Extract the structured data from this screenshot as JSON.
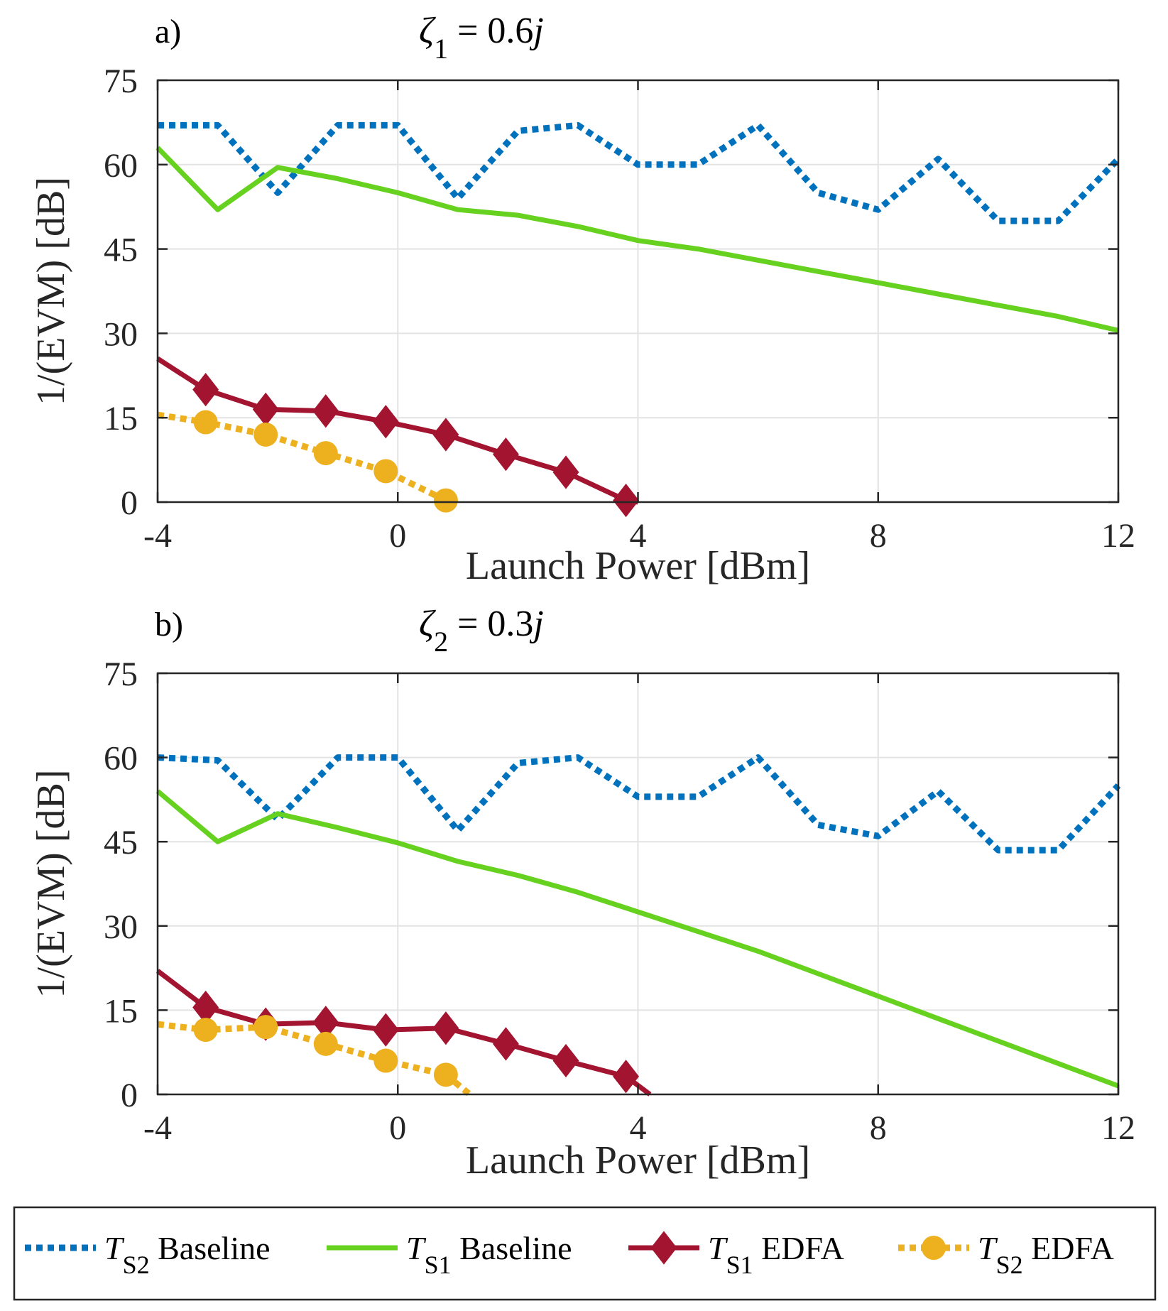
{
  "chart_data": [
    {
      "type": "line",
      "panel_label": "a)",
      "title": {
        "symbol": "ζ",
        "sub": "1",
        "eq": " = 0.6",
        "imag": "j"
      },
      "xlabel": "Launch Power [dBm]",
      "ylabel": "1/(EVM) [dB]",
      "xlim": [
        -4,
        12
      ],
      "ylim": [
        0,
        75
      ],
      "xticks": [
        "-4",
        "0",
        "4",
        "8",
        "12"
      ],
      "yticks": [
        "0",
        "15",
        "30",
        "45",
        "60",
        "75"
      ],
      "grid": true,
      "series": [
        {
          "key": "ts2_baseline",
          "name": "T_S2 Baseline",
          "x": [
            -4,
            -3,
            -2,
            -1,
            0,
            1,
            2,
            3,
            4,
            5,
            6,
            7,
            8,
            9,
            10,
            11,
            12
          ],
          "y": [
            67,
            67,
            55,
            67,
            67,
            54,
            66,
            67,
            60,
            60,
            67,
            55,
            52,
            61,
            50,
            50,
            61
          ]
        },
        {
          "key": "ts1_baseline",
          "name": "T_S1 Baseline",
          "x": [
            -4,
            -3,
            -2,
            -1,
            0,
            1,
            2,
            3,
            4,
            5,
            6,
            7,
            8,
            9,
            10,
            11,
            12
          ],
          "y": [
            63,
            52,
            59.5,
            57.5,
            55,
            52,
            51,
            49,
            46.5,
            45,
            43,
            41,
            39,
            37,
            35,
            33,
            30.5
          ]
        },
        {
          "key": "ts1_edfa",
          "name": "T_S1 EDFA",
          "x": [
            -4,
            -3.2,
            -2.2,
            -1.2,
            -0.2,
            0.8,
            1.8,
            2.8,
            3.8,
            4
          ],
          "y": [
            25.5,
            20,
            16.5,
            16.2,
            14.3,
            12,
            8.5,
            5.3,
            0.3,
            0
          ],
          "markers": [
            false,
            true,
            true,
            true,
            true,
            true,
            true,
            true,
            true,
            false
          ]
        },
        {
          "key": "ts2_edfa",
          "name": "T_S2 EDFA",
          "x": [
            -4,
            -3.2,
            -2.2,
            -1.2,
            -0.2,
            0.8
          ],
          "y": [
            15.5,
            14.2,
            12,
            8.7,
            5.5,
            0.3
          ],
          "markers": [
            false,
            true,
            true,
            true,
            true,
            true
          ]
        }
      ]
    },
    {
      "type": "line",
      "panel_label": "b)",
      "title": {
        "symbol": "ζ",
        "sub": "2",
        "eq": " = 0.3",
        "imag": "j"
      },
      "xlabel": "Launch Power [dBm]",
      "ylabel": "1/(EVM) [dB]",
      "xlim": [
        -4,
        12
      ],
      "ylim": [
        0,
        75
      ],
      "xticks": [
        "-4",
        "0",
        "4",
        "8",
        "12"
      ],
      "yticks": [
        "0",
        "15",
        "30",
        "45",
        "60",
        "75"
      ],
      "grid": true,
      "series": [
        {
          "key": "ts2_baseline",
          "name": "T_S2 Baseline",
          "x": [
            -4,
            -3,
            -2,
            -1,
            0,
            1,
            2,
            3,
            4,
            5,
            6,
            7,
            8,
            9,
            10,
            11,
            12
          ],
          "y": [
            60,
            59.5,
            49,
            60,
            60,
            47,
            59,
            60,
            53,
            53,
            60,
            48,
            46,
            54,
            43.5,
            43.5,
            55
          ]
        },
        {
          "key": "ts1_baseline",
          "name": "T_S1 Baseline",
          "x": [
            -4,
            -3,
            -2,
            -1,
            0,
            1,
            2,
            3,
            4,
            5,
            6,
            7,
            8,
            9,
            10,
            11,
            12
          ],
          "y": [
            54,
            45,
            50,
            47.5,
            44.8,
            41.5,
            39,
            36,
            32.5,
            29,
            25.5,
            21.5,
            17.5,
            13.5,
            9.5,
            5.5,
            1.5
          ]
        },
        {
          "key": "ts1_edfa",
          "name": "T_S1 EDFA",
          "x": [
            -4,
            -3.2,
            -2.2,
            -1.2,
            -0.2,
            0.8,
            1.8,
            2.8,
            3.8,
            4.2
          ],
          "y": [
            22,
            15.5,
            12.5,
            12.8,
            11.5,
            11.8,
            9,
            6,
            3.2,
            0
          ],
          "markers": [
            false,
            true,
            true,
            true,
            true,
            true,
            true,
            true,
            true,
            false
          ]
        },
        {
          "key": "ts2_edfa",
          "name": "T_S2 EDFA",
          "x": [
            -4,
            -3.2,
            -2.2,
            -1.2,
            -0.2,
            0.8,
            1.2
          ],
          "y": [
            12.5,
            11.5,
            12,
            9,
            6,
            3.5,
            0
          ],
          "markers": [
            false,
            true,
            true,
            true,
            true,
            true,
            false
          ]
        }
      ]
    }
  ],
  "legend": {
    "items": [
      {
        "key": "ts2_baseline",
        "symbol": "T",
        "sub": "S2",
        "label": "Baseline"
      },
      {
        "key": "ts1_baseline",
        "symbol": "T",
        "sub": "S1",
        "label": "Baseline"
      },
      {
        "key": "ts1_edfa",
        "symbol": "T",
        "sub": "S1",
        "label": "EDFA"
      },
      {
        "key": "ts2_edfa",
        "symbol": "T",
        "sub": "S2",
        "label": "EDFA"
      }
    ]
  },
  "colors": {
    "ts2_baseline": "#0072BD",
    "ts1_baseline": "#66D11E",
    "ts1_edfa": "#A2142F",
    "ts2_edfa": "#EDB120",
    "grid": "#e3e3e3",
    "axis": "#262626"
  }
}
